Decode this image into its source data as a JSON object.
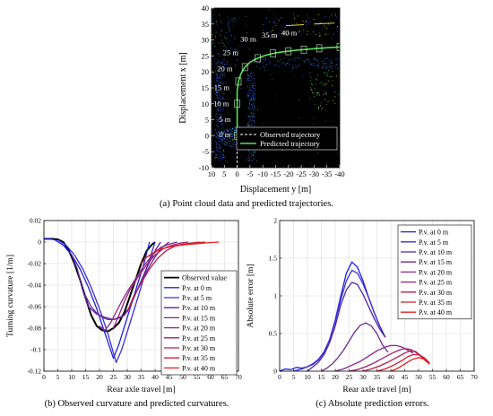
{
  "chart_data": [
    {
      "type": "scatter",
      "id": "a",
      "caption": "(a) Point cloud data and predicted trajectories.",
      "xlabel": "Displacement y [m]",
      "ylabel": "Displacement x [m]",
      "xlim": [
        10,
        -40
      ],
      "ylim": [
        -10,
        40
      ],
      "xticks": [
        10,
        5,
        0,
        -5,
        -10,
        -15,
        -20,
        -25,
        -30,
        -35,
        -40
      ],
      "yticks": [
        -10,
        -5,
        0,
        5,
        10,
        15,
        20,
        25,
        30,
        35,
        40
      ],
      "background": "#000000",
      "point_cloud_colors": [
        "#3b48e0",
        "#22a6d8",
        "#2f7fe8",
        "#e6d23a",
        "#36c86e",
        "#ffffff"
      ],
      "series": [
        {
          "name": "Observed trajectory",
          "style": "dashed",
          "color": "#ffffff",
          "x": [
            0,
            0,
            0,
            0,
            0,
            -0.5,
            -1.5,
            -3,
            -5,
            -8,
            -11,
            -14,
            -17,
            -20,
            -23,
            -26,
            -29,
            -32,
            -36,
            -40
          ],
          "y": [
            -10,
            0,
            5,
            10,
            14,
            17,
            19.5,
            21.5,
            23,
            24.3,
            25.2,
            25.8,
            26.2,
            26.5,
            26.8,
            27,
            27.2,
            27.4,
            27.6,
            27.8
          ]
        },
        {
          "name": "Predicted trajectory",
          "style": "solid",
          "color": "#58e058",
          "x": [
            0,
            0,
            0,
            0,
            -0.5,
            -1.5,
            -3,
            -5,
            -8,
            -11,
            -14,
            -17,
            -20,
            -23,
            -26,
            -29,
            -32,
            -36,
            -40
          ],
          "y": [
            0,
            5,
            10,
            14,
            17,
            19.5,
            21.5,
            23,
            24.3,
            25.2,
            25.8,
            26.2,
            26.5,
            26.8,
            27,
            27.2,
            27.4,
            27.6,
            27.8
          ]
        }
      ],
      "annotations": [
        {
          "text": "0 m",
          "x": 2.5,
          "y": -0.5
        },
        {
          "text": "5 m",
          "x": 2.5,
          "y": 4.3
        },
        {
          "text": "10 m",
          "x": 3.2,
          "y": 9.2
        },
        {
          "text": "15 m",
          "x": 3.0,
          "y": 14.3
        },
        {
          "text": "20 m",
          "x": 1.8,
          "y": 20.2
        },
        {
          "text": "25 m",
          "x": -0.5,
          "y": 25.2
        },
        {
          "text": "30 m",
          "x": -7.3,
          "y": 29.5
        },
        {
          "text": "35 m",
          "x": -15.6,
          "y": 30.8
        },
        {
          "text": "40 m",
          "x": -23.3,
          "y": 31.5
        }
      ]
    },
    {
      "type": "line",
      "id": "b",
      "caption": "(b) Observed curvature and predicted curvatures.",
      "xlabel": "Rear axle travel [m]",
      "ylabel": "Turning curvature [1/m]",
      "xlim": [
        0,
        70
      ],
      "ylim": [
        -0.12,
        0.02
      ],
      "xticks": [
        0,
        5,
        10,
        15,
        20,
        25,
        30,
        35,
        40,
        45,
        50,
        55,
        60,
        65,
        70
      ],
      "yticks": [
        0.02,
        0,
        -0.02,
        -0.04,
        -0.06,
        -0.08,
        -0.1,
        -0.12
      ],
      "grid": true,
      "legend": "top-right",
      "series": [
        {
          "name": "Observed value",
          "color": "#000000",
          "width": 2.0,
          "x": [
            0,
            3,
            5,
            7,
            9,
            11,
            13,
            15,
            17,
            19,
            21,
            23,
            25,
            27,
            29,
            31,
            33,
            35,
            37,
            39,
            40
          ],
          "y": [
            0.003,
            0.003,
            0.0025,
            0,
            -0.008,
            -0.02,
            -0.035,
            -0.052,
            -0.068,
            -0.078,
            -0.082,
            -0.083,
            -0.08,
            -0.075,
            -0.065,
            -0.05,
            -0.035,
            -0.02,
            -0.008,
            -0.002,
            0
          ]
        },
        {
          "name": "P.v. at 0 m",
          "color": "#2020dd",
          "width": 1.3,
          "x": [
            0,
            2,
            4,
            7,
            10,
            13,
            16,
            19,
            22,
            25,
            27,
            30,
            33,
            36,
            38
          ],
          "y": [
            0.003,
            0.003,
            0.002,
            -0.003,
            -0.012,
            -0.025,
            -0.042,
            -0.062,
            -0.085,
            -0.108,
            -0.095,
            -0.07,
            -0.045,
            -0.02,
            0
          ]
        },
        {
          "name": "P.v. at 5 m",
          "color": "#3d2ed8",
          "width": 1.3,
          "x": [
            5,
            8,
            11,
            14,
            17,
            20,
            23,
            26,
            28,
            31,
            34,
            37,
            40
          ],
          "y": [
            0.002,
            -0.003,
            -0.012,
            -0.025,
            -0.042,
            -0.062,
            -0.085,
            -0.112,
            -0.1,
            -0.075,
            -0.05,
            -0.024,
            0
          ]
        },
        {
          "name": "P.v. at 10 m",
          "color": "#55249f",
          "width": 1.3,
          "x": [
            10,
            12,
            14,
            16,
            19,
            22,
            25,
            28,
            31,
            34,
            37,
            40,
            42
          ],
          "y": [
            -0.012,
            -0.025,
            -0.045,
            -0.06,
            -0.067,
            -0.07,
            -0.072,
            -0.07,
            -0.06,
            -0.042,
            -0.024,
            -0.008,
            0
          ]
        },
        {
          "name": "P.v. at 15 m",
          "color": "#6d2a8f",
          "width": 1.3,
          "x": [
            15,
            17,
            19,
            21,
            23,
            25,
            27,
            29,
            31,
            33,
            36,
            39,
            42,
            45
          ],
          "y": [
            -0.05,
            -0.06,
            -0.066,
            -0.07,
            -0.072,
            -0.072,
            -0.07,
            -0.068,
            -0.06,
            -0.048,
            -0.032,
            -0.018,
            -0.006,
            0
          ]
        },
        {
          "name": "P.v. at 20 m",
          "color": "#87288a",
          "width": 1.3,
          "x": [
            20,
            22,
            24,
            26,
            28,
            30,
            33,
            36,
            39,
            42,
            45,
            48
          ],
          "y": [
            -0.078,
            -0.082,
            -0.075,
            -0.065,
            -0.055,
            -0.046,
            -0.034,
            -0.022,
            -0.012,
            -0.005,
            -0.002,
            0
          ]
        },
        {
          "name": "P.v. at 25 m",
          "color": "#9a2273",
          "width": 1.3,
          "x": [
            25,
            27,
            29,
            31,
            34,
            37,
            40,
            43,
            46,
            49,
            52
          ],
          "y": [
            -0.08,
            -0.068,
            -0.055,
            -0.044,
            -0.032,
            -0.021,
            -0.012,
            -0.006,
            -0.003,
            -0.001,
            0
          ]
        },
        {
          "name": "P.v. at 30 m",
          "color": "#b41d52",
          "width": 1.3,
          "x": [
            30,
            32,
            35,
            38,
            41,
            44,
            47,
            50,
            53,
            56
          ],
          "y": [
            -0.065,
            -0.052,
            -0.038,
            -0.025,
            -0.015,
            -0.008,
            -0.004,
            -0.002,
            -0.001,
            0
          ]
        },
        {
          "name": "P.v. at 35 m",
          "color": "#cc1c33",
          "width": 1.3,
          "x": [
            35,
            37,
            40,
            43,
            46,
            49,
            52,
            55,
            58
          ],
          "y": [
            -0.02,
            -0.014,
            -0.009,
            -0.006,
            -0.004,
            -0.0025,
            -0.0015,
            -0.0005,
            0
          ]
        },
        {
          "name": "P.v. at 40 m",
          "color": "#e61f1f",
          "width": 1.3,
          "x": [
            40,
            43,
            46,
            49,
            52,
            55,
            58,
            61,
            63
          ],
          "y": [
            -0.008,
            -0.006,
            -0.004,
            -0.003,
            -0.0022,
            -0.0015,
            -0.0008,
            -0.0003,
            0
          ]
        }
      ]
    },
    {
      "type": "line",
      "id": "c",
      "caption": "(c) Absolute prediction errors.",
      "xlabel": "Rear axle travel [m]",
      "ylabel": "Absolute error [m]",
      "xlim": [
        0,
        70
      ],
      "ylim": [
        0,
        2
      ],
      "xticks": [
        0,
        5,
        10,
        15,
        20,
        25,
        30,
        35,
        40,
        45,
        50,
        55,
        60,
        65,
        70
      ],
      "yticks": [
        0,
        0.5,
        1,
        1.5,
        2
      ],
      "grid": true,
      "legend": "top-right",
      "series": [
        {
          "name": "P.v. at 0 m",
          "color": "#2020dd",
          "x": [
            0,
            2,
            4,
            6,
            8,
            10,
            12,
            14,
            16,
            18,
            20,
            22,
            24,
            26,
            28,
            30,
            32,
            34,
            36,
            38
          ],
          "y": [
            0,
            0.03,
            0.02,
            0.05,
            0.04,
            0.06,
            0.09,
            0.15,
            0.25,
            0.42,
            0.68,
            1.0,
            1.3,
            1.45,
            1.38,
            1.2,
            0.98,
            0.78,
            0.6,
            0.45
          ]
        },
        {
          "name": "P.v. at 5 m",
          "color": "#3d2ed8",
          "x": [
            5,
            8,
            10,
            12,
            14,
            16,
            18,
            20,
            22,
            24,
            26,
            28,
            30,
            32,
            34,
            36,
            38
          ],
          "y": [
            0,
            0.03,
            0.06,
            0.1,
            0.16,
            0.26,
            0.42,
            0.66,
            0.95,
            1.2,
            1.34,
            1.3,
            1.16,
            0.98,
            0.78,
            0.6,
            0.45
          ]
        },
        {
          "name": "P.v. at 10 m",
          "color": "#55249f",
          "x": [
            10,
            12,
            14,
            16,
            18,
            20,
            22,
            24,
            26,
            28,
            30,
            32,
            34,
            36,
            38
          ],
          "y": [
            0,
            0.06,
            0.12,
            0.22,
            0.38,
            0.6,
            0.88,
            1.08,
            1.18,
            1.15,
            1.02,
            0.86,
            0.7,
            0.56,
            0.45
          ]
        },
        {
          "name": "P.v. at 15 m",
          "color": "#6d2a8f",
          "x": [
            15,
            17,
            19,
            21,
            23,
            25,
            27,
            29,
            31,
            33,
            35,
            37,
            39
          ],
          "y": [
            0,
            0.04,
            0.1,
            0.18,
            0.28,
            0.4,
            0.52,
            0.61,
            0.64,
            0.6,
            0.5,
            0.35,
            0.25
          ]
        },
        {
          "name": "P.v. at 20 m",
          "color": "#87288a",
          "x": [
            20,
            23,
            26,
            29,
            32,
            35,
            38,
            40,
            42,
            44,
            46,
            48
          ],
          "y": [
            0,
            0.03,
            0.08,
            0.13,
            0.2,
            0.27,
            0.32,
            0.34,
            0.34,
            0.32,
            0.28,
            0.24
          ]
        },
        {
          "name": "P.v. at 25 m",
          "color": "#9a2273",
          "x": [
            25,
            28,
            31,
            34,
            37,
            40,
            43,
            45,
            47,
            49,
            51,
            53
          ],
          "y": [
            0,
            0.02,
            0.06,
            0.11,
            0.17,
            0.23,
            0.28,
            0.3,
            0.29,
            0.25,
            0.19,
            0.12
          ]
        },
        {
          "name": "P.v. at 30 m",
          "color": "#b41d52",
          "x": [
            30,
            33,
            36,
            39,
            42,
            45,
            47,
            49,
            51,
            53
          ],
          "y": [
            0,
            0.03,
            0.07,
            0.12,
            0.18,
            0.24,
            0.27,
            0.26,
            0.2,
            0.12
          ]
        },
        {
          "name": "P.v. at 35 m",
          "color": "#cc1c33",
          "x": [
            35,
            38,
            41,
            44,
            46,
            48,
            50,
            52,
            54
          ],
          "y": [
            0,
            0.03,
            0.08,
            0.14,
            0.19,
            0.22,
            0.22,
            0.18,
            0.11
          ]
        },
        {
          "name": "P.v. at 40 m",
          "color": "#e61f1f",
          "x": [
            40,
            42,
            44,
            46,
            48,
            50,
            52,
            54
          ],
          "y": [
            0,
            0.03,
            0.07,
            0.12,
            0.16,
            0.18,
            0.16,
            0.09
          ]
        }
      ]
    }
  ]
}
